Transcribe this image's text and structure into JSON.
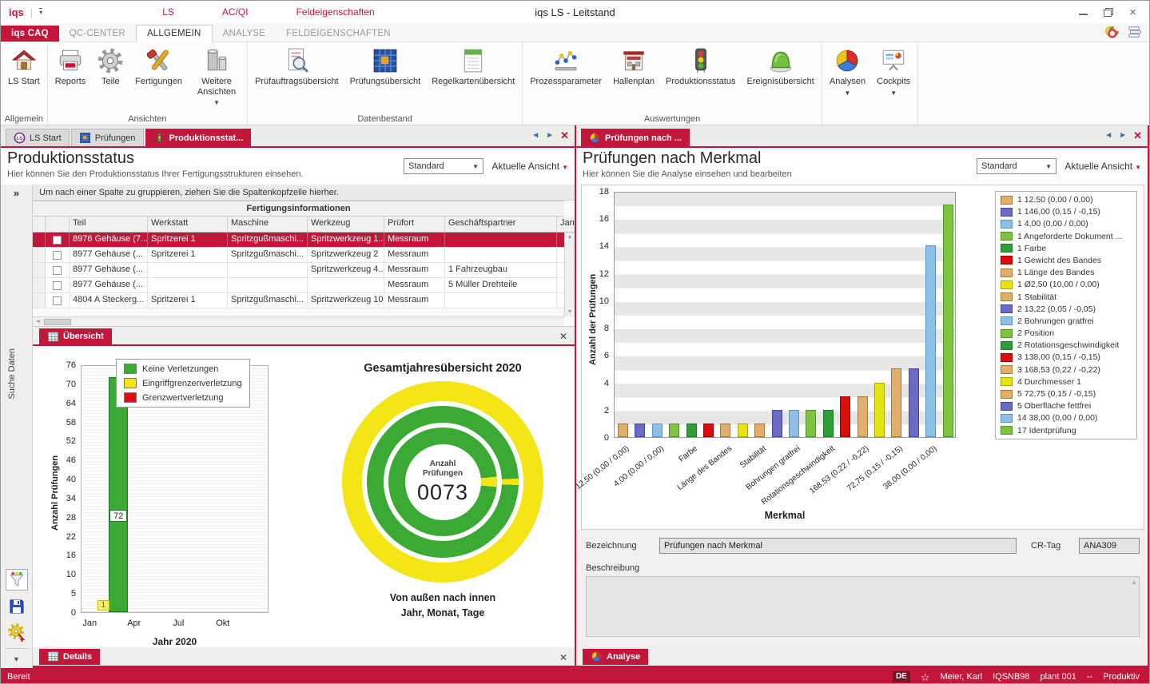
{
  "window": {
    "logo": "iqs",
    "title": "iqs LS - Leitstand",
    "menu": [
      "LS",
      "AC/QI",
      "Feldeigenschaften"
    ]
  },
  "ribbon_tabs": [
    {
      "label": "iqs CAQ",
      "style": "brand"
    },
    {
      "label": "QC-CENTER"
    },
    {
      "label": "ALLGEMEIN",
      "active": true
    },
    {
      "label": "ANALYSE"
    },
    {
      "label": "FELDEIGENSCHAFTEN"
    }
  ],
  "ribbon_groups": [
    {
      "label": "Allgemein",
      "buttons": [
        {
          "label": "LS Start",
          "icon": "house",
          "wrap": true
        }
      ]
    },
    {
      "label": "Ansichten",
      "buttons": [
        {
          "label": "Reports",
          "icon": "printer"
        },
        {
          "label": "Teile",
          "icon": "gear"
        },
        {
          "label": "Fertigungen",
          "icon": "tools"
        },
        {
          "label": "Weitere Ansichten",
          "icon": "views",
          "wrap": true,
          "arrow": true
        }
      ]
    },
    {
      "label": "Datenbestand",
      "buttons": [
        {
          "label": "Prüfauftragsübersicht",
          "icon": "docsearch"
        },
        {
          "label": "Prüfungsübersicht",
          "icon": "grid"
        },
        {
          "label": "Regelkartenübersicht",
          "icon": "note"
        }
      ]
    },
    {
      "label": "Auswertungen",
      "buttons": [
        {
          "label": "Prozessparameter",
          "icon": "scatter"
        },
        {
          "label": "Hallenplan",
          "icon": "building"
        },
        {
          "label": "Produktionsstatus",
          "icon": "trafficlight"
        },
        {
          "label": "Ereignisübersicht",
          "icon": "jelly"
        }
      ]
    },
    {
      "label": "",
      "buttons": [
        {
          "label": "Analysen",
          "icon": "pie",
          "arrow": true
        },
        {
          "label": "Cockpits",
          "icon": "board",
          "arrow": true
        }
      ]
    }
  ],
  "left_panel": {
    "tabs": [
      {
        "label": "LS Start",
        "icon": "lsbadge"
      },
      {
        "label": "Prüfungen",
        "icon": "grid"
      },
      {
        "label": "Produktionsstat...",
        "icon": "trafficlight",
        "active": true
      }
    ],
    "title": "Produktionsstatus",
    "subtitle": "Hier können Sie den Produktionsstatus Ihrer Fertigungsstrukturen einsehen.",
    "view_select": "Standard",
    "view_menu": "Aktuelle Ansicht",
    "collapse_glyph": "»",
    "groupby_hint": "Um nach einer Spalte zu gruppieren, ziehen Sie die Spaltenkopfzeile hierher.",
    "sidebar_label": "Suche Daten",
    "table": {
      "group_header": "Fertigungsinformationen",
      "columns": [
        "Teil",
        "Werkstatt",
        "Maschine",
        "Werkzeug",
        "Prüfort",
        "Geschäftspartner",
        "Jan"
      ],
      "rows": [
        {
          "selected": true,
          "cells": [
            "8976 Gehäuse (7...",
            "Spritzerei 1",
            "Spritzgußmaschi...",
            "Spritzwerkzeug 1...",
            "Messraum",
            "",
            ""
          ]
        },
        {
          "selected": false,
          "cells": [
            "8977 Gehäuse  (...",
            "Spritzerei 1",
            "Spritzgußmaschi...",
            "Spritzwerkzeug 2",
            "Messraum",
            "",
            ""
          ]
        },
        {
          "selected": false,
          "cells": [
            "8977 Gehäuse  (...",
            "",
            "",
            "Spritzwerkzeug 4...",
            "Messraum",
            "1   Fahrzeugbau",
            ""
          ]
        },
        {
          "selected": false,
          "cells": [
            "8977 Gehäuse  (...",
            "",
            "",
            "",
            "Messraum",
            "5   Müller Drehteile",
            ""
          ]
        },
        {
          "selected": false,
          "cells": [
            "4804 A Steckerg...",
            "Spritzerei 1",
            "Spritzgußmaschi...",
            "Spritzwerkzeug 10",
            "Messraum",
            "",
            ""
          ]
        }
      ]
    },
    "overview_tab": "Übersicht",
    "details_tab": "Details",
    "chart_data": {
      "type": "bar",
      "ylabel": "Anzahl Prüfungen",
      "xlabel": "Jahr 2020",
      "ymax": 76,
      "yticks": [
        76,
        70,
        64,
        58,
        52,
        46,
        40,
        34,
        28,
        22,
        16,
        10,
        5,
        0
      ],
      "xticks": [
        "Jan",
        "Apr",
        "Jul",
        "Okt"
      ],
      "legend": [
        {
          "label": "Keine Verletzungen",
          "color": "#3aaa35"
        },
        {
          "label": "Eingriffgrenzenverletzung",
          "color": "#f3e518"
        },
        {
          "label": "Grenzwertverletzung",
          "color": "#d90f0f"
        }
      ],
      "series": [
        {
          "name": "Keine Verletzungen",
          "month_index": 2,
          "value": 72,
          "color": "#3aaa35",
          "style": "bar"
        },
        {
          "name": "Eingriffgrenzenverletzung",
          "month_index": 1,
          "value": 1,
          "color": "#f3e518",
          "style": "marker"
        }
      ]
    },
    "donut": {
      "title": "Gesamtjahresübersicht 2020",
      "center_label": "Anzahl Prüfungen",
      "center_value": "0073",
      "caption_line1": "Von außen nach innen",
      "caption_line2": "Jahr, Monat, Tage",
      "rings": [
        {
          "name": "Jahr",
          "color": "#f3e518",
          "slice_color": null,
          "slice_deg": 0
        },
        {
          "name": "Monat",
          "color": "#3aaa35",
          "slice_color": "#f3e518",
          "slice_deg": 5
        },
        {
          "name": "Tage",
          "color": "#3aaa35",
          "slice_color": "#f3e518",
          "slice_deg": 11
        }
      ]
    }
  },
  "right_panel": {
    "tabs": [
      {
        "label": "Prüfungen nach ...",
        "icon": "pie",
        "active": true
      }
    ],
    "title": "Prüfungen nach Merkmal",
    "subtitle": "Hier können Sie die Analyse einsehen und bearbeiten",
    "view_select": "Standard",
    "view_menu": "Aktuelle Ansicht",
    "chart_data": {
      "type": "bar",
      "ylabel": "Anzahl der Prüfungen",
      "xlabel": "Merkmal",
      "ylim": [
        0,
        18
      ],
      "ytick_step": 2,
      "xlabels_shown_every": 2,
      "bars": [
        {
          "name": "12,50 (0,00 / 0,00)",
          "value": 1,
          "color": "tan"
        },
        {
          "name": "146,00 (0,15 / -0,15)",
          "value": 1,
          "color": "violet"
        },
        {
          "name": "4,00 (0,00 / 0,00)",
          "value": 1,
          "color": "lightblue"
        },
        {
          "name": "Angeforderte Dokument ...",
          "value": 1,
          "color": "lightgreen"
        },
        {
          "name": "Farbe",
          "value": 1,
          "color": "green"
        },
        {
          "name": "Gewicht des Bandes",
          "value": 1,
          "color": "red"
        },
        {
          "name": "Länge des Bandes",
          "value": 1,
          "color": "tan"
        },
        {
          "name": "Ø2,50 (10,00 / 0,00)",
          "value": 1,
          "color": "yellow"
        },
        {
          "name": "Stabilität",
          "value": 1,
          "color": "tan"
        },
        {
          "name": "13,22 (0,05 / -0,05)",
          "value": 2,
          "color": "violet"
        },
        {
          "name": "Bohrungen gratfrei",
          "value": 2,
          "color": "lightblue"
        },
        {
          "name": "Position",
          "value": 2,
          "color": "lightgreen"
        },
        {
          "name": "Rotationsgeschwindigkeit",
          "value": 2,
          "color": "green"
        },
        {
          "name": "138,00 (0,15 / -0,15)",
          "value": 3,
          "color": "red"
        },
        {
          "name": "168,53 (0,22 / -0,22)",
          "value": 3,
          "color": "tan"
        },
        {
          "name": "Durchmesser 1",
          "value": 4,
          "color": "yellow"
        },
        {
          "name": "72,75 (0,15 / -0,15)",
          "value": 5,
          "color": "tan"
        },
        {
          "name": "Oberfläche fettfrei",
          "value": 5,
          "color": "violet"
        },
        {
          "name": "38,00 (0,00 / 0,00)",
          "value": 14,
          "color": "lightblue"
        },
        {
          "name": "Identprüfung",
          "value": 17,
          "color": "lightgreen"
        }
      ],
      "legend": [
        {
          "label": "1 12,50 (0,00 / 0,00)",
          "color": "tan"
        },
        {
          "label": "1 146,00 (0,15 / -0,15)",
          "color": "violet"
        },
        {
          "label": "1 4,00 (0,00 / 0,00)",
          "color": "lightblue"
        },
        {
          "label": "1 Angeforderte Dokument ...",
          "color": "lightgreen"
        },
        {
          "label": "1 Farbe",
          "color": "green"
        },
        {
          "label": "1 Gewicht des Bandes",
          "color": "red"
        },
        {
          "label": "1 Länge des Bandes",
          "color": "tan"
        },
        {
          "label": "1 Ø2,50 (10,00 / 0,00)",
          "color": "yellow"
        },
        {
          "label": "1 Stabilität",
          "color": "tan"
        },
        {
          "label": "2 13,22 (0,05 / -0,05)",
          "color": "violet"
        },
        {
          "label": "2 Bohrungen gratfrei",
          "color": "lightblue"
        },
        {
          "label": "2 Position",
          "color": "lightgreen"
        },
        {
          "label": "2 Rotationsgeschwindigkeit",
          "color": "green"
        },
        {
          "label": "3 138,00 (0,15 / -0,15)",
          "color": "red"
        },
        {
          "label": "3 168,53 (0,22 / -0,22)",
          "color": "tan"
        },
        {
          "label": "4 Durchmesser 1",
          "color": "yellow"
        },
        {
          "label": "5 72,75 (0,15 / -0,15)",
          "color": "tan"
        },
        {
          "label": "5 Oberfläche fettfrei",
          "color": "violet"
        },
        {
          "label": "14 38,00 (0,00 / 0,00)",
          "color": "lightblue"
        },
        {
          "label": "17 Identprüfung",
          "color": "lightgreen"
        }
      ]
    },
    "form": {
      "bezeichnung_label": "Bezeichnung",
      "bezeichnung_value": "Prüfungen nach Merkmal",
      "crtag_label": "CR-Tag",
      "crtag_value": "ANA309",
      "beschreibung_label": "Beschreibung",
      "beschreibung_value": ""
    },
    "analyse_tab": "Analyse"
  },
  "statusbar": {
    "left": "Bereit",
    "lang": "DE",
    "star": "☆",
    "user": "Meier, Karl",
    "host": "IQSNB98",
    "plant": "plant 001",
    "sep": "--",
    "env": "Produktiv"
  },
  "palette": {
    "accent": "#c2173b",
    "tan": "#e2ae6d",
    "violet": "#6b6bc4",
    "lightblue": "#8fbfe4",
    "lightgreen": "#7fc241",
    "green": "#2f9e38",
    "red": "#d90f0f",
    "yellow": "#e8e312"
  }
}
